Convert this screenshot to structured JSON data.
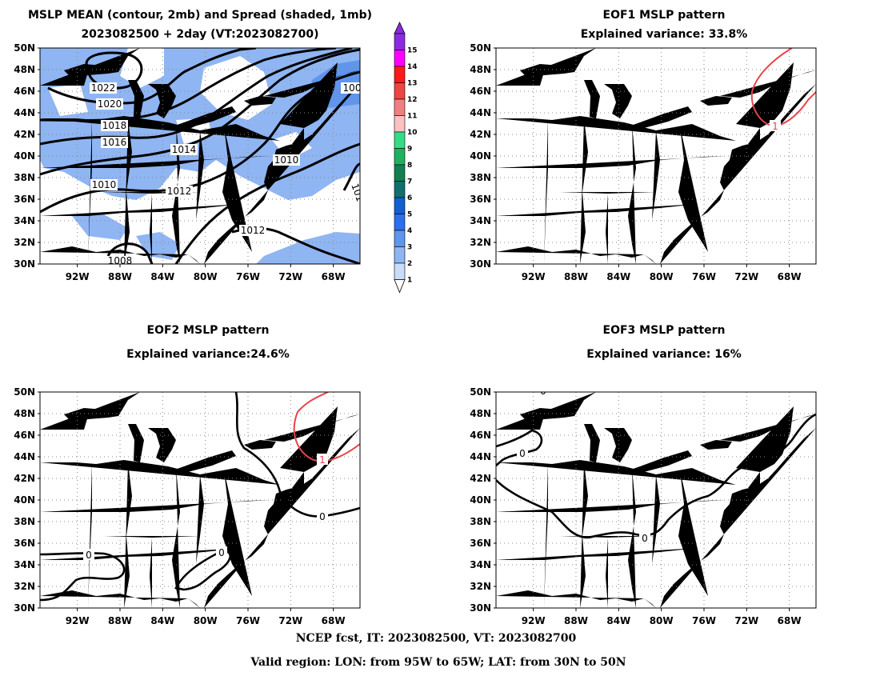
{
  "colors": {
    "coast": "#e68a3a",
    "spread_1": "#8fb5f3",
    "spread_2": "#5f95ec",
    "positive_eof": "#e8434a",
    "contour": "#000000"
  },
  "panels": [
    {
      "id": "mean",
      "title_line1": "MSLP MEAN (contour, 2mb) and Spread (shaded, 1mb)",
      "title_line2": "2023082500 + 2day (VT:2023082700)",
      "contour_labels": [
        "1022",
        "1020",
        "1018",
        "1016",
        "1014",
        "1012",
        "1010",
        "1008",
        "1010",
        "1012",
        "100",
        "101"
      ]
    },
    {
      "id": "eof1",
      "title_line1": "EOF1 MSLP pattern",
      "title_line2": "Explained variance: 33.8%",
      "contour_labels": [
        "1"
      ]
    },
    {
      "id": "eof2",
      "title_line1": "EOF2 MSLP pattern",
      "title_line2": "Explained variance:24.6%",
      "contour_labels": [
        "0",
        "0",
        "0",
        "1"
      ]
    },
    {
      "id": "eof3",
      "title_line1": "EOF3 MSLP pattern",
      "title_line2": "Explained variance: 16%",
      "contour_labels": [
        "0",
        "0",
        "0"
      ]
    }
  ],
  "axes": {
    "lat_ticks": [
      "50N",
      "48N",
      "46N",
      "44N",
      "42N",
      "40N",
      "38N",
      "36N",
      "34N",
      "32N",
      "30N"
    ],
    "lon_ticks": [
      "92W",
      "88W",
      "84W",
      "80W",
      "76W",
      "72W",
      "68W"
    ]
  },
  "colorbar": {
    "labels": [
      "15",
      "14",
      "13",
      "12",
      "11",
      "10",
      "9",
      "8",
      "7",
      "6",
      "5",
      "4",
      "3",
      "2",
      "1"
    ],
    "colors": [
      "#8a2be2",
      "#ff00ff",
      "#ff1a1a",
      "#ef4444",
      "#f08080",
      "#ffc0c0",
      "#33dd88",
      "#20b060",
      "#118050",
      "#107070",
      "#1060d0",
      "#2a6ff0",
      "#5f95ec",
      "#8fb5f3",
      "#c8dcfb"
    ]
  },
  "footer": {
    "line1": "NCEP fcst, IT: 2023082500, VT: 2023082700",
    "line2": "Valid region: LON: from 95W to 65W; LAT: from 30N to 50N"
  }
}
